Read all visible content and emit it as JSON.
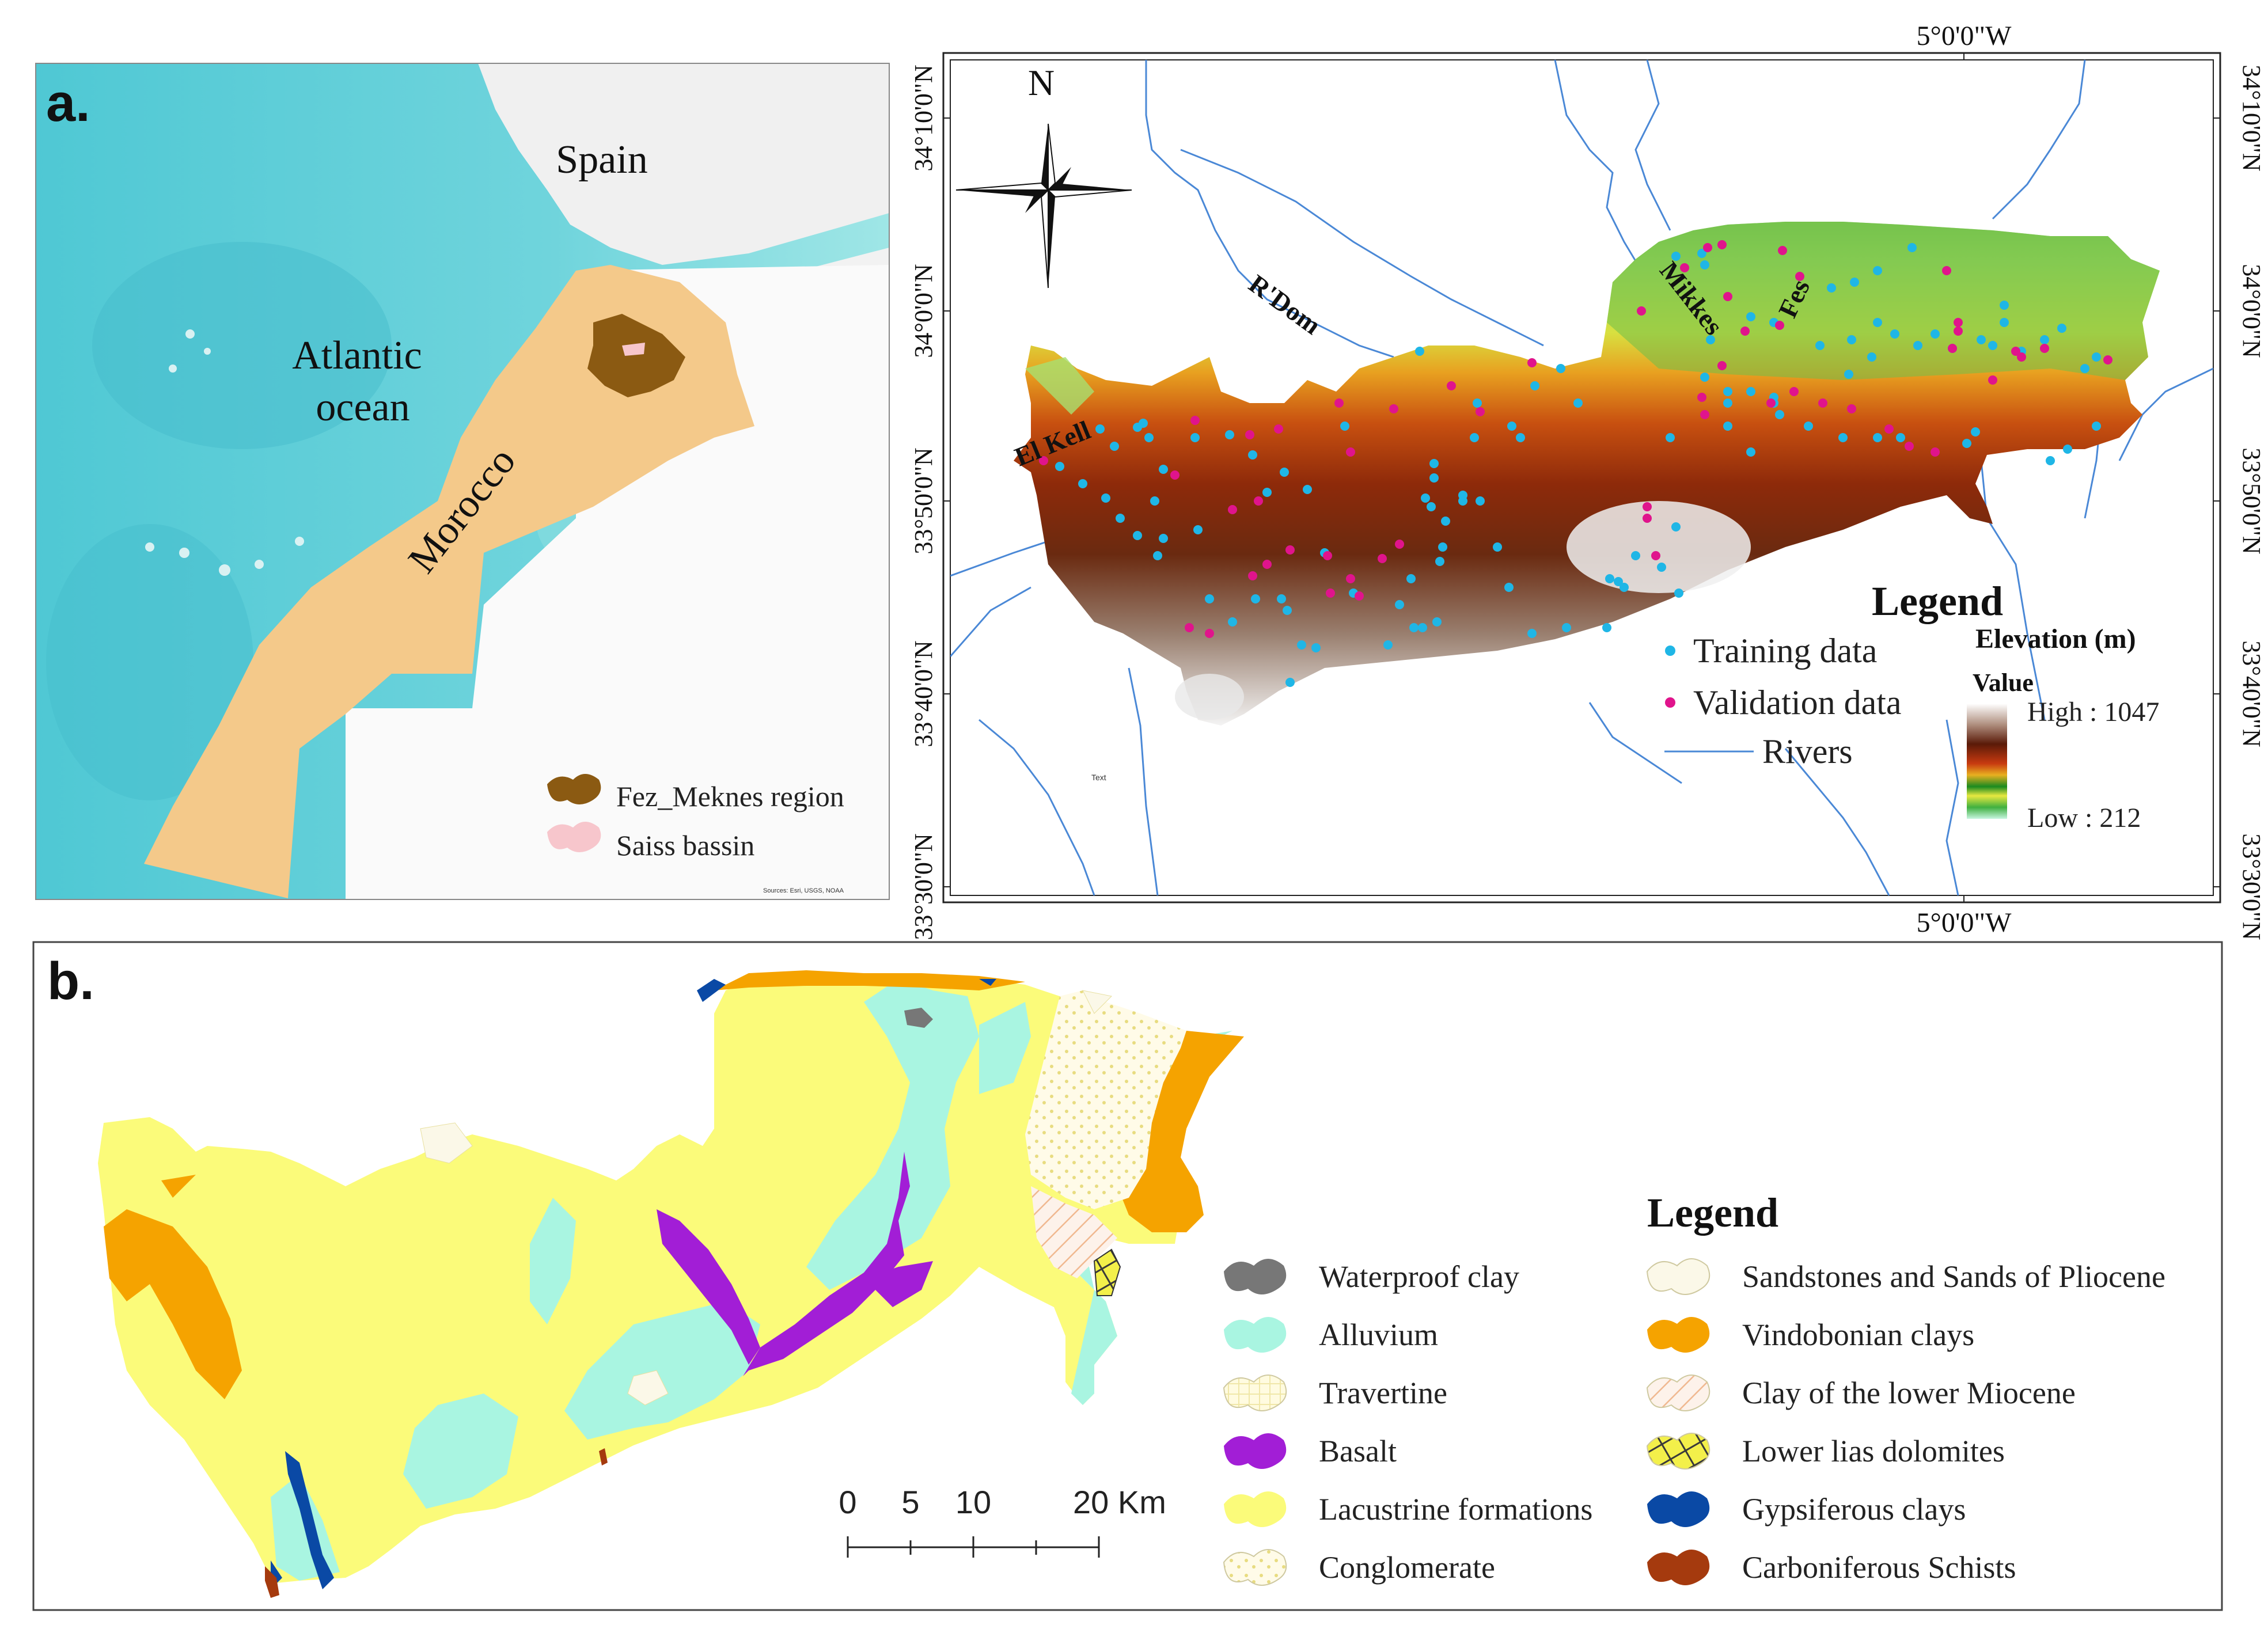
{
  "panel_a": {
    "label": "a.",
    "countries": {
      "spain": "Spain",
      "morocco": "Morocco"
    },
    "ocean": {
      "line1": "Atlantic",
      "line2": "ocean"
    },
    "legend": [
      {
        "label": "Fez_Meknes region",
        "color": "#8b5a12"
      },
      {
        "label": "Saiss bassin",
        "color": "#f7c6cc"
      }
    ],
    "credits": "Sources: Esri, USGS, NOAA"
  },
  "elevation_map": {
    "top_lon": "5°0'0\"W",
    "bottom_lon": "5°0'0\"W",
    "lat_ticks": [
      "34°10'0\"N",
      "34°0'0\"N",
      "33°50'0\"N",
      "33°40'0\"N",
      "33°30'0\"N"
    ],
    "north": "N",
    "places": [
      "El Kell",
      "R'Dom",
      "Mikkes",
      "Fes"
    ],
    "stray_text": "Text",
    "legend": {
      "title": "Legend",
      "training": "Training data",
      "validation": "Validation data",
      "rivers": "Rivers",
      "elev_title": "Elevation (m)",
      "value": "Value",
      "high": "High : 1047",
      "low": "Low : 212"
    },
    "colors": {
      "training": "#1fb6e6",
      "validation": "#e0148c",
      "river": "#4a88d6"
    }
  },
  "panel_b": {
    "label": "b.",
    "legend_title": "Legend",
    "scale": {
      "ticks": [
        "0",
        "5",
        "10",
        "20 Km"
      ]
    },
    "legend_left": [
      {
        "label": "Waterproof clay",
        "color": "#777777"
      },
      {
        "label": "Alluvium",
        "color": "#a9f5e1"
      },
      {
        "label": "Travertine",
        "color": "#fffbd6"
      },
      {
        "label": "Basalt",
        "color": "#a21ed6"
      },
      {
        "label": "Lacustrine formations",
        "color": "#fbfb7a"
      },
      {
        "label": "Conglomerate",
        "color": "#fffbe0"
      }
    ],
    "legend_right": [
      {
        "label": "Sandstones and Sands of Pliocene",
        "color": "#fbf8e8"
      },
      {
        "label": "Vindobonian clays",
        "color": "#f5a300"
      },
      {
        "label": "Clay of the lower Miocene",
        "color": "#fbe7d6"
      },
      {
        "label": "Lower lias dolomites",
        "color": "#f3f04a"
      },
      {
        "label": "Gypsiferous clays",
        "color": "#0a49a5"
      },
      {
        "label": "Carboniferous Schists",
        "color": "#a53a0e"
      }
    ]
  }
}
